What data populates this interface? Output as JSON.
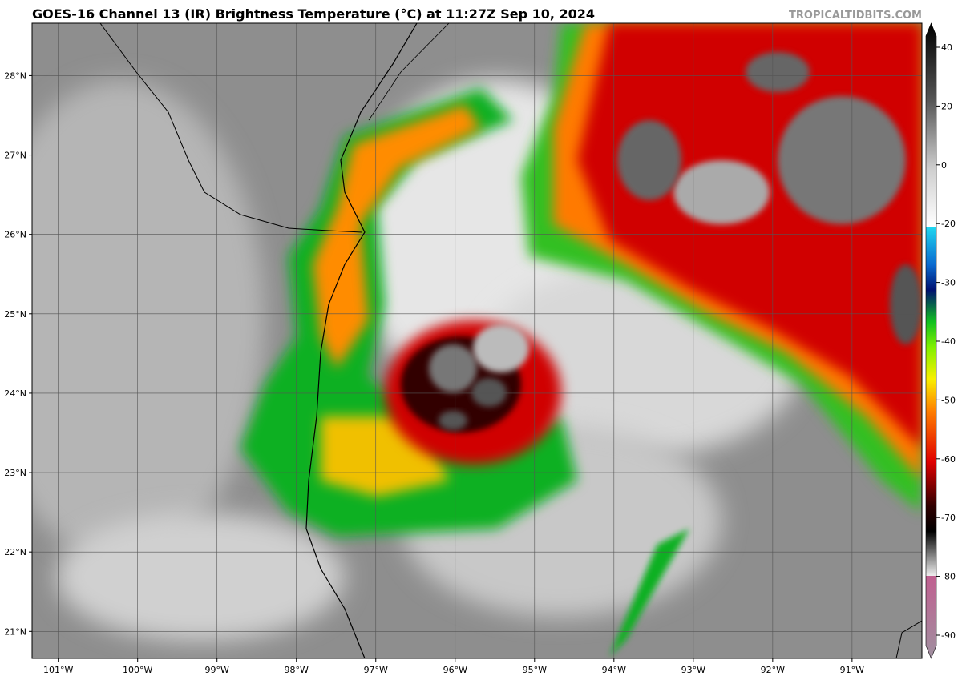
{
  "title": "GOES-16 Channel 13 (IR) Brightness Temperature (°C) at 11:27Z Sep 10, 2024",
  "credit": "TROPICALTIDBITS.COM",
  "map": {
    "lonlim": [
      -101.33,
      -90.12
    ],
    "latlim": [
      20.66,
      28.66
    ],
    "lon_ticks": [
      {
        "value": -101,
        "label": "101°W"
      },
      {
        "value": -100,
        "label": "100°W"
      },
      {
        "value": -99,
        "label": "99°W"
      },
      {
        "value": -98,
        "label": "98°W"
      },
      {
        "value": -97,
        "label": "97°W"
      },
      {
        "value": -96,
        "label": "96°W"
      },
      {
        "value": -95,
        "label": "95°W"
      },
      {
        "value": -94,
        "label": "94°W"
      },
      {
        "value": -93,
        "label": "93°W"
      },
      {
        "value": -92,
        "label": "92°W"
      },
      {
        "value": -91,
        "label": "91°W"
      }
    ],
    "lat_ticks": [
      {
        "value": 28,
        "label": "28°N"
      },
      {
        "value": 27,
        "label": "27°N"
      },
      {
        "value": 26,
        "label": "26°N"
      },
      {
        "value": 25,
        "label": "25°N"
      },
      {
        "value": 24,
        "label": "24°N"
      },
      {
        "value": 23,
        "label": "23°N"
      },
      {
        "value": 22,
        "label": "22°N"
      },
      {
        "value": 21,
        "label": "21°N"
      }
    ]
  },
  "colorbar": {
    "ticks": [
      40,
      20,
      0,
      -20,
      -30,
      -40,
      -50,
      -60,
      -70,
      -80,
      -90
    ]
  }
}
